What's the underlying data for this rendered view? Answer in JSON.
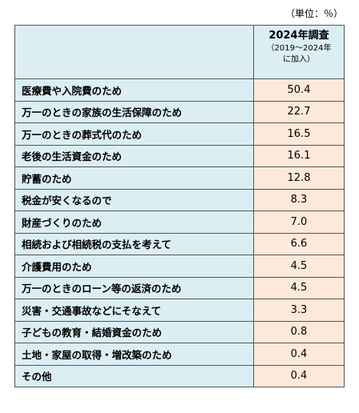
{
  "unit_note": "（単位：％）",
  "header": {
    "label": "",
    "value_title": "2024年調査",
    "value_sub1": "（2019～2024年",
    "value_sub2": "に加入）"
  },
  "rows": [
    {
      "label": "医療費や入院費のため",
      "value": "50.4"
    },
    {
      "label": "万一のときの家族の生活保障のため",
      "value": "22.7"
    },
    {
      "label": "万一のときの葬式代のため",
      "value": "16.5"
    },
    {
      "label": "老後の生活資金のため",
      "value": "16.1"
    },
    {
      "label": "貯蓄のため",
      "value": "12.8"
    },
    {
      "label": "税金が安くなるので",
      "value": "8.3"
    },
    {
      "label": "財産づくりのため",
      "value": "7.0"
    },
    {
      "label": "相続および相続税の支払を考えて",
      "value": "6.6"
    },
    {
      "label": "介護費用のため",
      "value": "4.5"
    },
    {
      "label": "万一のときのローン等の返済のため",
      "value": "4.5"
    },
    {
      "label": "災害・交通事故などにそなえて",
      "value": "3.3"
    },
    {
      "label": "子どもの教育・結婚資金のため",
      "value": "0.8"
    },
    {
      "label": "土地・家屋の取得・増改築のため",
      "value": "0.4"
    },
    {
      "label": "その他",
      "value": "0.4"
    }
  ]
}
